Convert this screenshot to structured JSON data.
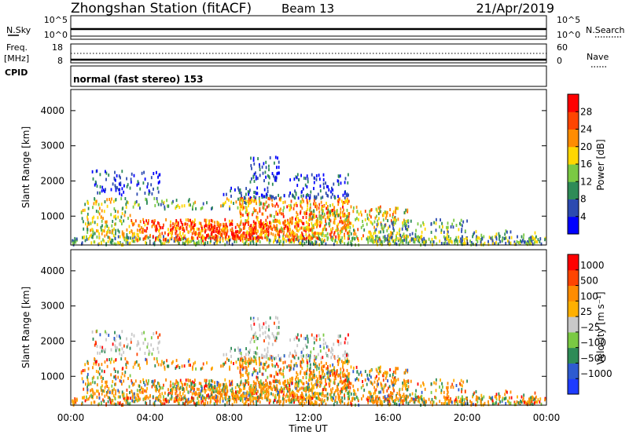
{
  "header": {
    "station": "Zhongshan Station (fitACF)",
    "beam": "Beam 13",
    "date": "21/Apr/2019"
  },
  "top_panels": {
    "nsky_label": "N.Sky",
    "nsearch_label": "N.Search",
    "nsky_ticks": [
      "10^5",
      "10^0"
    ],
    "nsearch_ticks": [
      "10^5",
      "10^0"
    ],
    "freq_label_1": "Freq.",
    "freq_label_2": "[MHz]",
    "freq_ticks": [
      "18",
      "8"
    ],
    "nave_label": "Nave",
    "nave_ticks": [
      "60",
      "0"
    ],
    "cpid_label": "CPID",
    "cpid_text": "normal (fast stereo) 153"
  },
  "chart_data": [
    {
      "type": "heatmap",
      "name": "power-panel",
      "ylabel": "Slant Range [km]",
      "ylim": [
        180,
        4600
      ],
      "yticks": [
        1000,
        2000,
        3000,
        4000
      ],
      "xlim": [
        0,
        24
      ],
      "colorbar": {
        "label": "Power [dB]",
        "ticks": [
          4,
          8,
          12,
          16,
          20,
          24,
          28
        ],
        "range": [
          0,
          32
        ],
        "colors": [
          "#0000ff",
          "#2c4ab0",
          "#2e8b57",
          "#7ac943",
          "#ffd700",
          "#ff8c00",
          "#ff4500",
          "#ff0000"
        ]
      }
    },
    {
      "type": "heatmap",
      "name": "velocity-panel",
      "ylabel": "Slant Range [km]",
      "ylim": [
        180,
        4600
      ],
      "yticks": [
        1000,
        2000,
        3000,
        4000
      ],
      "xlim": [
        0,
        24
      ],
      "xlabel": "Time UT",
      "xticks": [
        "00:00",
        "04:00",
        "08:00",
        "12:00",
        "16:00",
        "20:00",
        "00:00"
      ],
      "colorbar": {
        "label": "Velocity [m s⁻¹]",
        "ticks": [
          "1000",
          "500",
          "100",
          "25",
          "−25",
          "−100",
          "−500",
          "−1000"
        ],
        "colors": [
          "#1e3cff",
          "#2e5bd0",
          "#2e8b57",
          "#7ac943",
          "#c8c8c8",
          "#ffb000",
          "#ff8c00",
          "#ff4500",
          "#ff0000"
        ]
      }
    }
  ]
}
